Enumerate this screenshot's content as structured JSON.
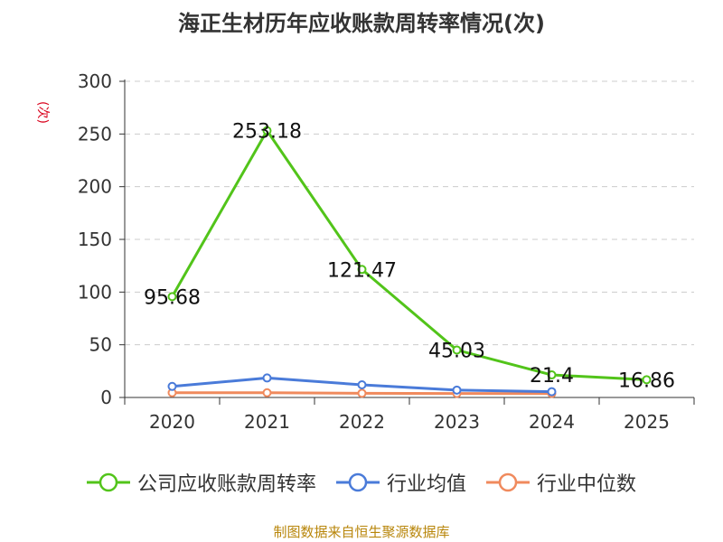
{
  "title": "海正生材历年应收账款周转率情况(次)",
  "unit_label": "(次)",
  "source": "制图数据来自恒生聚源数据库",
  "chart_data": {
    "type": "line",
    "title": "海正生材历年应收账款周转率情况(次)",
    "categories": [
      "2020",
      "2021",
      "2022",
      "2023",
      "2024",
      "2025"
    ],
    "ylim": [
      0,
      300
    ],
    "yticks": [
      0,
      50,
      100,
      150,
      200,
      250,
      300
    ],
    "grid": true,
    "legend_position": "bottom",
    "series": [
      {
        "name": "公司应收账款周转率",
        "color": "#52c41a",
        "values": [
          95.68,
          253.18,
          121.47,
          45.03,
          21.4,
          16.86
        ],
        "labels": [
          "95.68",
          "253.18",
          "121.47",
          "45.03",
          "21.4",
          "16.86"
        ]
      },
      {
        "name": "行业均值",
        "color": "#4a7bd9",
        "values": [
          10.5,
          18.5,
          12.0,
          7.0,
          5.5,
          null
        ]
      },
      {
        "name": "行业中位数",
        "color": "#f08a5d",
        "values": [
          4.5,
          4.5,
          4.0,
          3.8,
          3.8,
          null
        ]
      }
    ]
  }
}
